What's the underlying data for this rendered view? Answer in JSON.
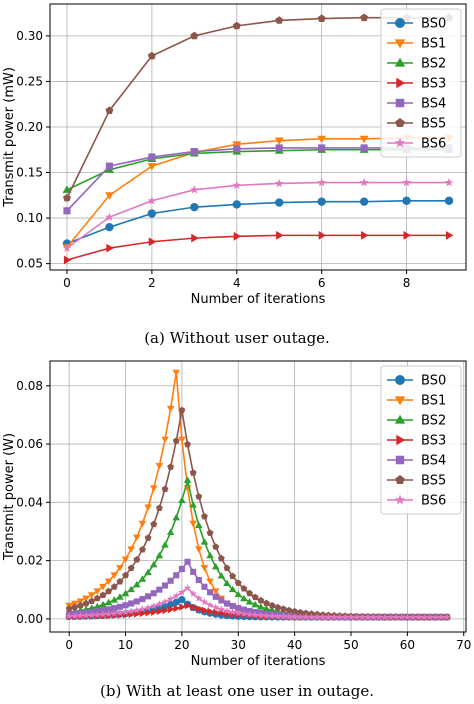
{
  "captions": [
    "(a)  Without user outage.",
    "(b)  With at least one user in outage."
  ],
  "chart_data": [
    {
      "type": "line",
      "title": "",
      "xlabel": "Number of iterations",
      "ylabel": "Transmit power (mW)",
      "xlim": [
        -0.4,
        9.4
      ],
      "ylim": [
        0.043,
        0.335
      ],
      "xticks": [
        0,
        2,
        4,
        6,
        8
      ],
      "yticks": [
        0.05,
        0.1,
        0.15,
        0.2,
        0.25,
        0.3
      ],
      "ytick_labels": [
        "0.05",
        "0.10",
        "0.15",
        "0.20",
        "0.25",
        "0.30"
      ],
      "grid": true,
      "legend_position": "top-right",
      "x": [
        0,
        1,
        2,
        3,
        4,
        5,
        6,
        7,
        8,
        9
      ],
      "series": [
        {
          "name": "BS0",
          "color": "#1f77b4",
          "marker": "circle",
          "values": [
            0.072,
            0.09,
            0.105,
            0.112,
            0.115,
            0.117,
            0.118,
            0.118,
            0.119,
            0.119
          ]
        },
        {
          "name": "BS1",
          "color": "#ff7f0e",
          "marker": "triangle-down",
          "values": [
            0.068,
            0.125,
            0.157,
            0.172,
            0.181,
            0.185,
            0.187,
            0.187,
            0.188,
            0.188
          ]
        },
        {
          "name": "BS2",
          "color": "#2ca02c",
          "marker": "triangle-up",
          "values": [
            0.131,
            0.153,
            0.165,
            0.171,
            0.173,
            0.174,
            0.175,
            0.175,
            0.175,
            0.175
          ]
        },
        {
          "name": "BS3",
          "color": "#d62728",
          "marker": "triangle-right",
          "values": [
            0.054,
            0.067,
            0.074,
            0.078,
            0.08,
            0.081,
            0.081,
            0.081,
            0.081,
            0.081
          ]
        },
        {
          "name": "BS4",
          "color": "#9467bd",
          "marker": "square",
          "values": [
            0.108,
            0.157,
            0.167,
            0.173,
            0.176,
            0.177,
            0.177,
            0.177,
            0.177,
            0.177
          ]
        },
        {
          "name": "BS5",
          "color": "#8c564b",
          "marker": "pentagon",
          "values": [
            0.122,
            0.218,
            0.278,
            0.3,
            0.311,
            0.317,
            0.319,
            0.32,
            0.32,
            0.32
          ]
        },
        {
          "name": "BS6",
          "color": "#e377c2",
          "marker": "star",
          "values": [
            0.067,
            0.101,
            0.119,
            0.131,
            0.136,
            0.138,
            0.139,
            0.139,
            0.139,
            0.139
          ]
        }
      ]
    },
    {
      "type": "line",
      "title": "",
      "xlabel": "Number of iterations",
      "ylabel": "Transmit power (W)",
      "xlim": [
        -3.4,
        70.4
      ],
      "ylim": [
        -0.0045,
        0.0885
      ],
      "xticks": [
        0,
        10,
        20,
        30,
        40,
        50,
        60,
        70
      ],
      "yticks": [
        0.0,
        0.02,
        0.04,
        0.06,
        0.08
      ],
      "ytick_labels": [
        "0.00",
        "0.02",
        "0.04",
        "0.06",
        "0.08"
      ],
      "grid": true,
      "legend_position": "top-right",
      "x_range": [
        0,
        67
      ],
      "series": [
        {
          "name": "BS0",
          "color": "#1f77b4",
          "marker": "circle",
          "peak_x": 20,
          "peak": 0.006,
          "rise": 0.16,
          "fall": 0.3
        },
        {
          "name": "BS1",
          "color": "#ff7f0e",
          "marker": "triangle-down",
          "peak_x": 19,
          "peak": 0.084,
          "rise": 0.16,
          "fall": 0.32
        },
        {
          "name": "BS2",
          "color": "#2ca02c",
          "marker": "triangle-up",
          "peak_x": 21,
          "peak": 0.047,
          "rise": 0.16,
          "fall": 0.2
        },
        {
          "name": "BS3",
          "color": "#d62728",
          "marker": "triangle-right",
          "peak_x": 21,
          "peak": 0.004,
          "rise": 0.14,
          "fall": 0.18
        },
        {
          "name": "BS4",
          "color": "#9467bd",
          "marker": "square",
          "peak_x": 21,
          "peak": 0.019,
          "rise": 0.14,
          "fall": 0.2
        },
        {
          "name": "BS5",
          "color": "#8c564b",
          "marker": "pentagon",
          "peak_x": 20,
          "peak": 0.071,
          "rise": 0.16,
          "fall": 0.18
        },
        {
          "name": "BS6",
          "color": "#e377c2",
          "marker": "star",
          "peak_x": 21,
          "peak": 0.01,
          "rise": 0.16,
          "fall": 0.22
        }
      ]
    }
  ]
}
